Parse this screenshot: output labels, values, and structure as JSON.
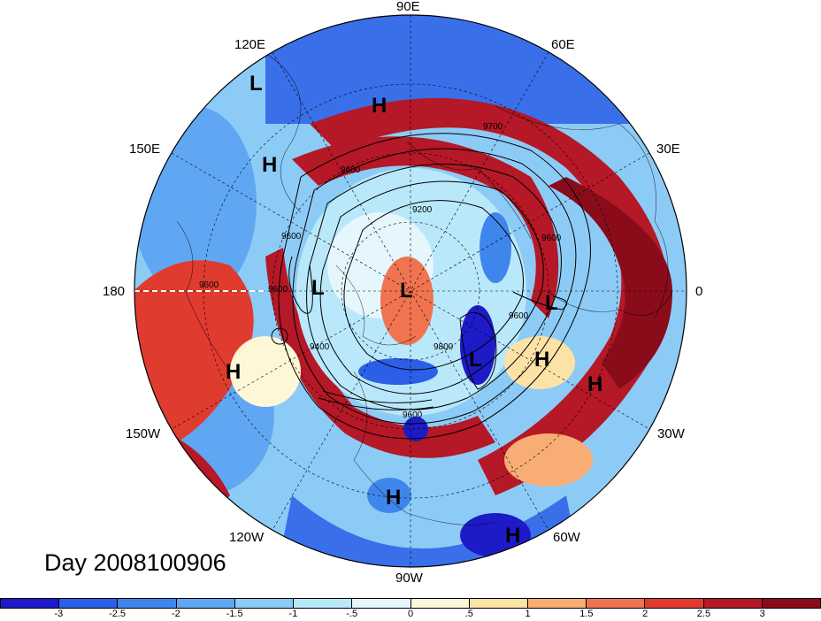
{
  "title": "Day 2008100906",
  "longitude_labels": {
    "top": "90E",
    "top_left": "120E",
    "top_right": "60E",
    "upper_left": "150E",
    "upper_right": "30E",
    "left": "180",
    "right": "0",
    "lower_left": "150W",
    "lower_right": "30W",
    "bottom_left": "120W",
    "bottom_right": "60W",
    "bottom": "90W"
  },
  "pressure_centers": [
    {
      "type": "L"
    },
    {
      "type": "H"
    },
    {
      "type": "H"
    },
    {
      "type": "L"
    },
    {
      "type": "L"
    },
    {
      "type": "L"
    },
    {
      "type": "L"
    },
    {
      "type": "H"
    },
    {
      "type": "H"
    },
    {
      "type": "H"
    },
    {
      "type": "H"
    },
    {
      "type": "H"
    }
  ],
  "contour_labels": [
    "9700",
    "9600",
    "9200",
    "9600",
    "9600",
    "9600",
    "9400",
    "9600",
    "9600",
    "9600",
    "9800"
  ],
  "colorbar": {
    "tick_labels": [
      "-3",
      "-2.5",
      "-2",
      "-1.5",
      "-1",
      "-.5",
      "0",
      ".5",
      "1",
      "1.5",
      "2",
      "2.5",
      "3"
    ],
    "colors": [
      "#1d1ac8",
      "#2c5fe8",
      "#3f86ec",
      "#5fa7f2",
      "#8dcbf7",
      "#b9e8fb",
      "#e5f7fd",
      "#fdf7d8",
      "#fde2a6",
      "#f8ad75",
      "#ef744f",
      "#e03b2f",
      "#b51826",
      "#8a0c1b"
    ]
  }
}
